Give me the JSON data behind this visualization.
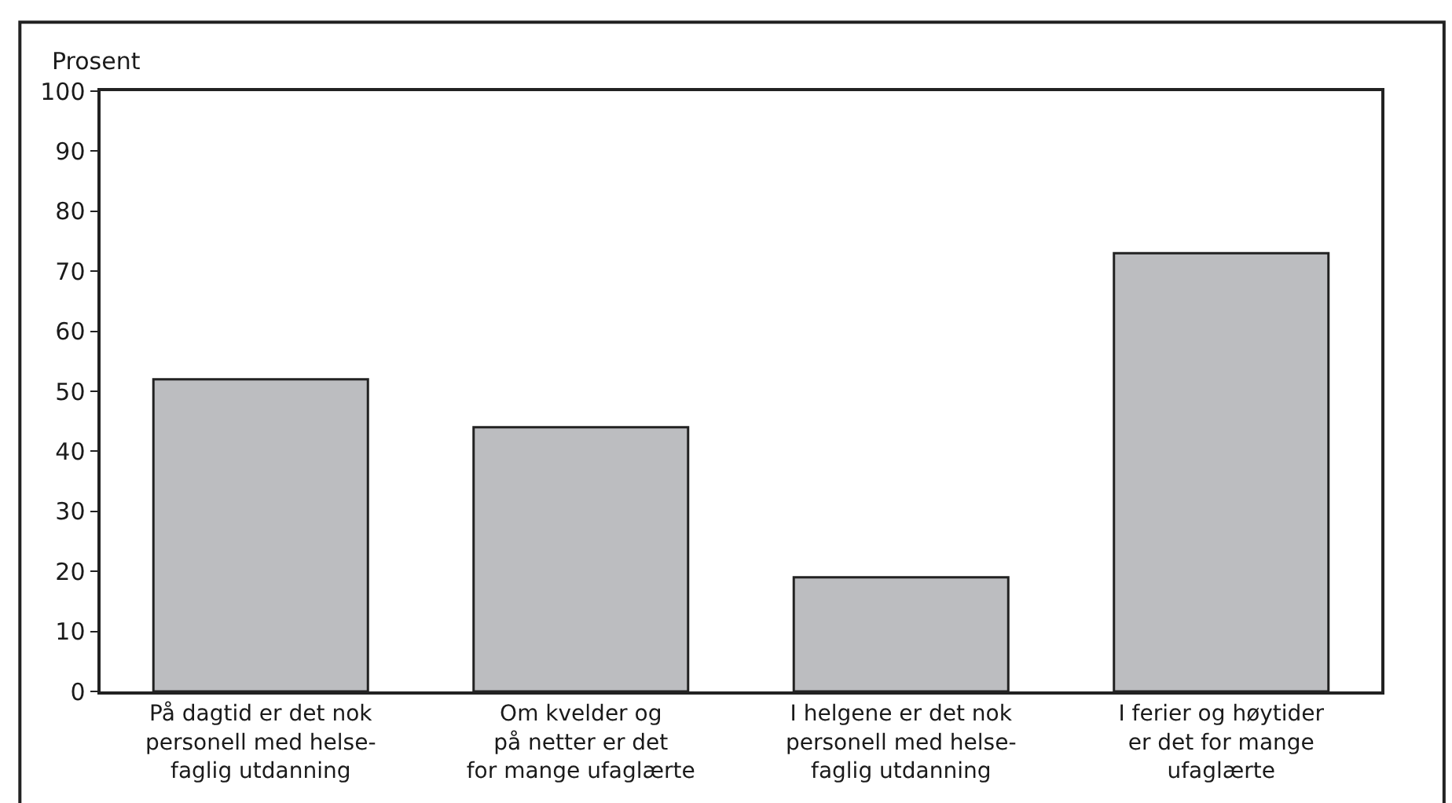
{
  "chart_data": {
    "type": "bar",
    "ylabel": "Prosent",
    "categories": [
      "På dagtid er det nok\npersonell med helse-\nfaglig utdanning",
      "Om kvelder og\npå netter er det\nfor mange ufaglærte",
      "I helgene er det nok\npersonell med helse-\nfaglig utdanning",
      "I ferier og høytider\ner det for mange\nufaglærte"
    ],
    "values": [
      52,
      44,
      19,
      73
    ],
    "color": "#bcbdc0",
    "ylim": [
      0,
      100
    ],
    "yticks": [
      0,
      10,
      20,
      30,
      40,
      50,
      60,
      70,
      80,
      90,
      100
    ]
  }
}
